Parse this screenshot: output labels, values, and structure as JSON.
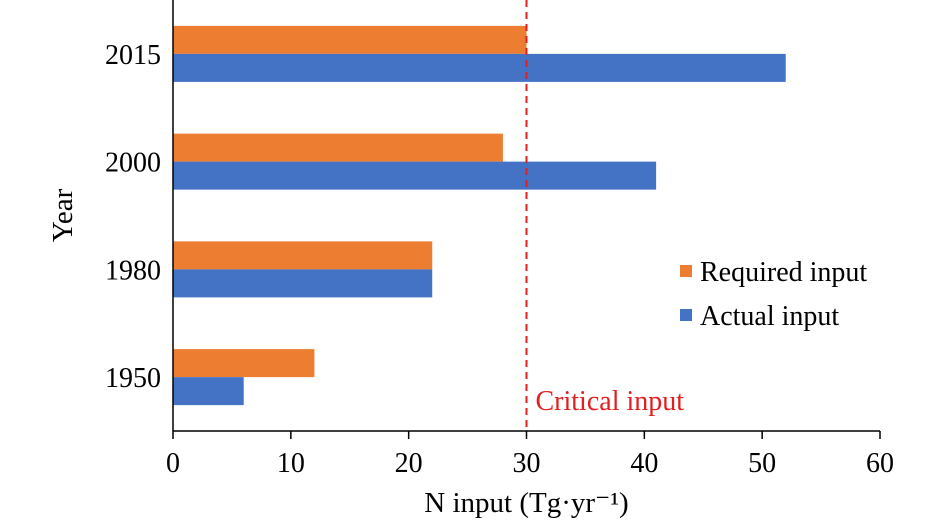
{
  "chart_data": {
    "type": "bar",
    "orientation": "horizontal",
    "categories": [
      "1950",
      "1980",
      "2000",
      "2015"
    ],
    "series": [
      {
        "name": "Required input",
        "values": [
          12,
          22,
          28,
          30
        ],
        "color": "#ED7D31"
      },
      {
        "name": "Actual input",
        "values": [
          6,
          22,
          41,
          52
        ],
        "color": "#4472C4"
      }
    ],
    "xlabel": "N input (Tg·yr⁻¹)",
    "ylabel": "Year",
    "xlim": [
      0,
      60
    ],
    "xticks": [
      "0",
      "10",
      "20",
      "30",
      "40",
      "50",
      "60"
    ],
    "grid": false,
    "legend_position": "right",
    "reference_line": {
      "value": 30,
      "label": "Critical input",
      "color": "#E02020",
      "style": "dashed"
    }
  }
}
